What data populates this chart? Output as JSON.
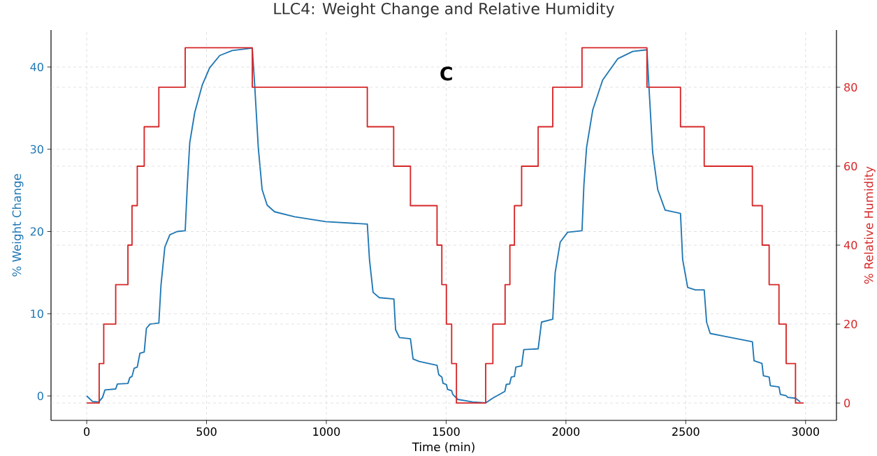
{
  "chart_data": {
    "type": "line",
    "title": "LLC4: Weight Change and Relative Humidity",
    "xlabel": "Time (min)",
    "ylabel": "% Weight Change",
    "y2label": "% Relative Humidity",
    "annotations": [
      "C"
    ],
    "xlim": [
      -149,
      3129
    ],
    "xticks": [
      0,
      500,
      1000,
      1500,
      2000,
      2500,
      3000
    ],
    "ylim": [
      -2.97,
      44.5
    ],
    "yticks": [
      0,
      10,
      20,
      30,
      40
    ],
    "y2lim": [
      -4.4,
      94.5
    ],
    "y2ticks": [
      0,
      20,
      40,
      60,
      80
    ],
    "grid": true,
    "series": [
      {
        "color": "#1f77b4",
        "x": [
          0,
          24,
          50,
          66,
          76,
          121,
          128,
          172,
          180,
          189,
          198,
          211,
          222,
          240,
          249,
          264,
          301,
          310,
          326,
          347,
          378,
          411,
          420,
          430,
          451,
          482,
          513,
          555,
          607,
          691,
          701,
          716,
          732,
          753,
          784,
          867,
          997,
          1171,
          1180,
          1195,
          1221,
          1282,
          1289,
          1305,
          1351,
          1362,
          1388,
          1462,
          1469,
          1482,
          1487,
          1501,
          1506,
          1523,
          1528,
          1549,
          1611,
          1665,
          1694,
          1745,
          1751,
          1765,
          1772,
          1785,
          1791,
          1815,
          1824,
          1884,
          1898,
          1945,
          1955,
          1976,
          2007,
          2067,
          2075,
          2086,
          2112,
          2153,
          2216,
          2279,
          2338,
          2346,
          2362,
          2383,
          2414,
          2478,
          2487,
          2508,
          2540,
          2577,
          2587,
          2602,
          2655,
          2778,
          2785,
          2818,
          2824,
          2848,
          2853,
          2889,
          2895,
          2919,
          2926,
          2958,
          2978
        ],
        "values": [
          0.0,
          -0.67,
          -0.73,
          -0.18,
          0.73,
          0.85,
          1.46,
          1.52,
          2.24,
          2.37,
          3.37,
          3.52,
          5.19,
          5.34,
          8.22,
          8.74,
          8.86,
          13.5,
          18.1,
          19.6,
          20.0,
          20.1,
          25.7,
          30.8,
          34.5,
          37.8,
          39.9,
          41.4,
          42.0,
          42.3,
          37.8,
          30.2,
          25.1,
          23.2,
          22.4,
          21.8,
          21.2,
          20.9,
          16.6,
          12.6,
          11.95,
          11.8,
          8.07,
          7.1,
          6.95,
          4.49,
          4.19,
          3.73,
          2.6,
          2.3,
          1.55,
          1.4,
          0.79,
          0.64,
          0.18,
          -0.42,
          -0.73,
          -0.85,
          -0.27,
          0.55,
          1.4,
          1.46,
          2.3,
          2.37,
          3.52,
          3.67,
          5.64,
          5.73,
          8.98,
          9.34,
          15.0,
          18.7,
          19.9,
          20.1,
          25.7,
          30.2,
          34.8,
          38.4,
          41.0,
          41.9,
          42.1,
          37.8,
          29.6,
          25.1,
          22.6,
          22.2,
          16.6,
          13.2,
          12.9,
          12.9,
          8.98,
          7.6,
          7.3,
          6.6,
          4.28,
          3.97,
          2.46,
          2.3,
          1.24,
          1.09,
          0.18,
          0.03,
          -0.18,
          -0.27,
          -0.73
        ]
      },
      {
        "type": "step",
        "axis": "y2",
        "color": "#d62728",
        "x": [
          0,
          52,
          71,
          121,
          172,
          189,
          211,
          240,
          301,
          411,
          691,
          1171,
          1281,
          1351,
          1462,
          1482,
          1501,
          1523,
          1543,
          1665,
          1695,
          1746,
          1766,
          1785,
          1815,
          1884,
          1945,
          2067,
          2338,
          2478,
          2577,
          2778,
          2819,
          2848,
          2889,
          2919,
          2958,
          2992
        ],
        "values": [
          0,
          10,
          20,
          30,
          40,
          50,
          60,
          70,
          80,
          90,
          80,
          70,
          60,
          50,
          40,
          30,
          20,
          10,
          0,
          10,
          20,
          30,
          40,
          50,
          60,
          70,
          80,
          90,
          80,
          70,
          60,
          50,
          40,
          30,
          20,
          10,
          0,
          0
        ]
      }
    ]
  }
}
